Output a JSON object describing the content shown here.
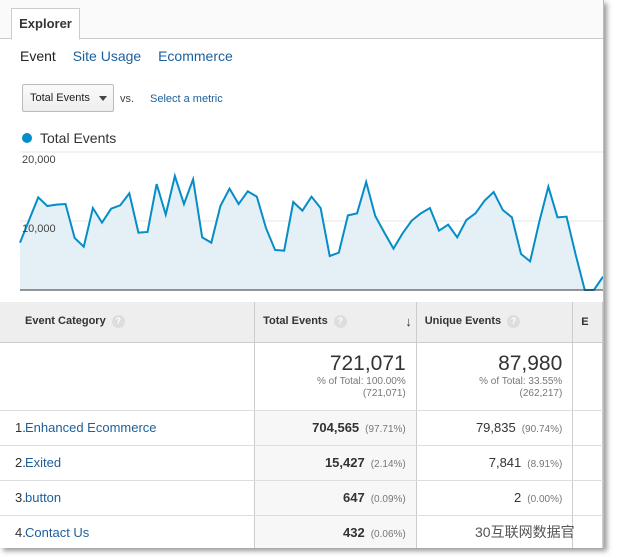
{
  "tab": "Explorer",
  "subtabs": [
    "Event",
    "Site Usage",
    "Ecommerce"
  ],
  "metric_select": "Total Events",
  "vs": "vs.",
  "select_metric": "Select a metric",
  "legend": "Total Events",
  "colors": {
    "series": "#058dc7",
    "fill": "#e4f0f6",
    "link": "#1c5f9c"
  },
  "chart_data": {
    "type": "area",
    "series": [
      {
        "name": "Total Events",
        "values": [
          6860,
          10140,
          13430,
          12170,
          12370,
          12460,
          7540,
          6280,
          11880,
          9760,
          11790,
          12270,
          14010,
          8310,
          8410,
          15360,
          10920,
          16520,
          12460,
          16040,
          7630,
          6860,
          12170,
          14690,
          12460,
          14300,
          13530,
          8990,
          5800,
          5700,
          12750,
          11500,
          13530,
          11880,
          4930,
          5410,
          10820,
          11110,
          15650,
          10720,
          8310,
          5990,
          8210,
          10050,
          11110,
          11880,
          8600,
          9470,
          7630,
          10140,
          11110,
          12950,
          14200,
          11590,
          10530,
          5220,
          4150,
          9860,
          14980,
          10530,
          10630,
          5120,
          0,
          0,
          1930
        ]
      }
    ],
    "yticks": [
      "20,000",
      "10,000"
    ],
    "ylim": [
      0,
      20000
    ],
    "grid": true
  },
  "table": {
    "headers": [
      "Event Category",
      "Total Events",
      "Unique Events",
      "E"
    ],
    "help": "?",
    "totals": {
      "total": "721,071",
      "total_pct": "% of Total: 100.00%",
      "total_abs": "(721,071)",
      "unique": "87,980",
      "unique_pct": "% of Total: 33.55%",
      "unique_abs": "(262,217)"
    },
    "rows": [
      {
        "idx": "1.",
        "name": "Enhanced Ecommerce",
        "total": "704,565",
        "total_pct": "(97.71%)",
        "unique": "79,835",
        "unique_pct": "(90.74%)"
      },
      {
        "idx": "2.",
        "name": "Exited",
        "total": "15,427",
        "total_pct": "(2.14%)",
        "unique": "7,841",
        "unique_pct": "(8.91%)"
      },
      {
        "idx": "3.",
        "name": "button",
        "total": "647",
        "total_pct": "(0.09%)",
        "unique": "2",
        "unique_pct": "(0.00%)"
      },
      {
        "idx": "4.",
        "name": "Contact Us",
        "total": "432",
        "total_pct": "(0.06%)",
        "unique": "",
        "unique_pct": ""
      }
    ]
  },
  "watermark": "30互联网数据官"
}
